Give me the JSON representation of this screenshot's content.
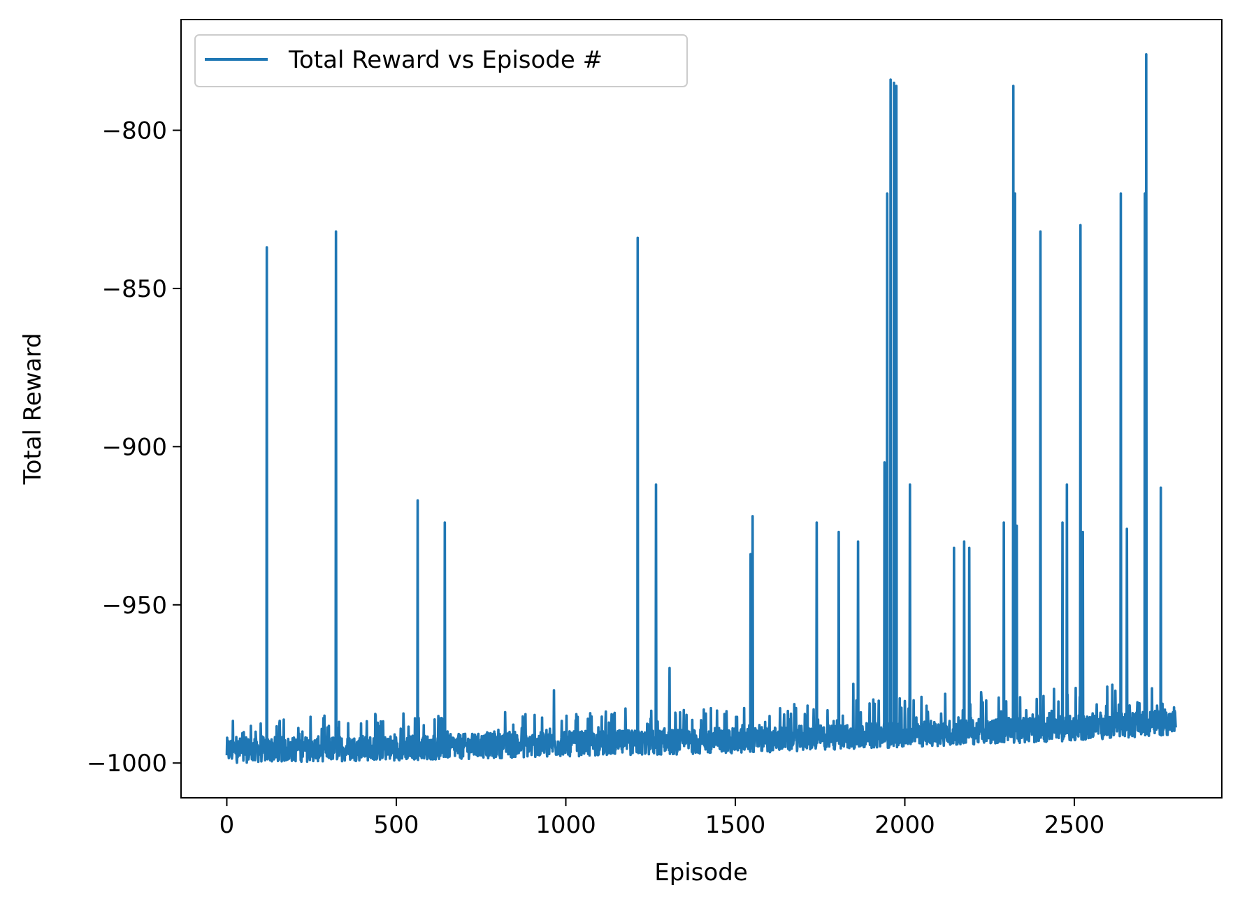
{
  "chart_data": {
    "type": "line",
    "title": "",
    "xlabel": "Episode",
    "ylabel": "Total Reward",
    "xlim": [
      -135,
      2935
    ],
    "ylim": [
      -1011,
      -765
    ],
    "xticks": [
      0,
      500,
      1000,
      1500,
      2000,
      2500
    ],
    "yticks": [
      -1000,
      -950,
      -900,
      -850,
      -800
    ],
    "xtick_labels": [
      "0",
      "500",
      "1000",
      "1500",
      "2000",
      "2500"
    ],
    "ytick_labels": [
      "−1000",
      "−950",
      "−900",
      "−850",
      "−800"
    ],
    "grid": false,
    "legend_position": "upper-left",
    "n_points": 2800,
    "series": [
      {
        "name": "Total Reward vs Episode #",
        "color": "#1f77b4",
        "baseline": [
          [
            0,
            -996
          ],
          [
            600,
            -995
          ],
          [
            1000,
            -994
          ],
          [
            1500,
            -993
          ],
          [
            2000,
            -991
          ],
          [
            2500,
            -989
          ],
          [
            2800,
            -987
          ]
        ],
        "spikes": [
          [
            118,
            -837
          ],
          [
            322,
            -832
          ],
          [
            563,
            -917
          ],
          [
            643,
            -924
          ],
          [
            965,
            -977
          ],
          [
            1212,
            -834
          ],
          [
            1266,
            -912
          ],
          [
            1306,
            -970
          ],
          [
            1545,
            -934
          ],
          [
            1551,
            -922
          ],
          [
            1740,
            -924
          ],
          [
            1805,
            -927
          ],
          [
            1848,
            -975
          ],
          [
            1862,
            -930
          ],
          [
            1940,
            -905
          ],
          [
            1948,
            -820
          ],
          [
            1958,
            -784
          ],
          [
            1968,
            -785
          ],
          [
            1975,
            -786
          ],
          [
            2015,
            -912
          ],
          [
            2145,
            -932
          ],
          [
            2175,
            -930
          ],
          [
            2190,
            -932
          ],
          [
            2292,
            -924
          ],
          [
            2320,
            -786
          ],
          [
            2325,
            -820
          ],
          [
            2330,
            -925
          ],
          [
            2400,
            -832
          ],
          [
            2465,
            -924
          ],
          [
            2478,
            -912
          ],
          [
            2518,
            -830
          ],
          [
            2525,
            -927
          ],
          [
            2637,
            -820
          ],
          [
            2655,
            -926
          ],
          [
            2708,
            -820
          ],
          [
            2712,
            -776
          ],
          [
            2755,
            -913
          ]
        ]
      }
    ]
  }
}
